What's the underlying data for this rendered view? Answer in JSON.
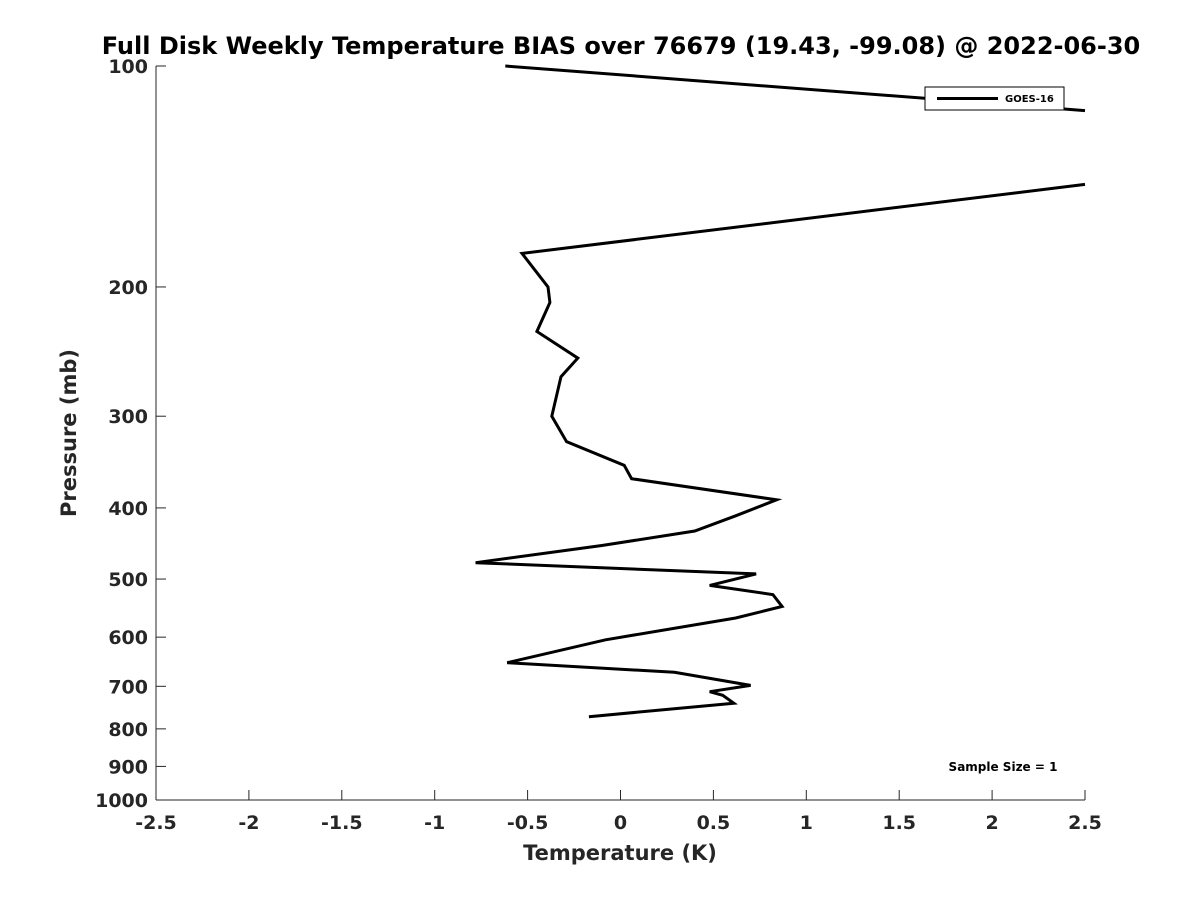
{
  "chart_data": {
    "type": "line",
    "title": "Full Disk Weekly Temperature BIAS over 76679 (19.43, -99.08) @ 2022-06-30",
    "xlabel": "Temperature (K)",
    "ylabel": "Pressure (mb)",
    "xlim": [
      -2.5,
      2.5
    ],
    "ylim": [
      100,
      1000
    ],
    "y_scale": "log",
    "y_reversed": true,
    "xticks": [
      "-2.5",
      "-2",
      "-1.5",
      "-1",
      "-0.5",
      "0",
      "0.5",
      "1",
      "1.5",
      "2",
      "2.5"
    ],
    "xtick_values": [
      -2.5,
      -2,
      -1.5,
      -1,
      -0.5,
      0,
      0.5,
      1,
      1.5,
      2,
      2.5
    ],
    "yticks": [
      "100",
      "200",
      "300",
      "400",
      "500",
      "600",
      "700",
      "800",
      "900",
      "1000"
    ],
    "ytick_values": [
      100,
      200,
      300,
      400,
      500,
      600,
      700,
      800,
      900,
      1000
    ],
    "legend": {
      "position": "top-right",
      "entries": [
        "GOES-16"
      ]
    },
    "annotation": "Sample Size = 1",
    "series": [
      {
        "name": "GOES-16",
        "color": "#000000",
        "x": [
          -0.62,
          2.5,
          null,
          2.5,
          -0.53,
          -0.39,
          -0.38,
          -0.45,
          -0.23,
          -0.32,
          -0.37,
          -0.29,
          0.02,
          0.06,
          0.84,
          0.62,
          0.4,
          -0.1,
          -0.78,
          0.73,
          0.48,
          0.82,
          0.87,
          0.62,
          -0.08,
          -0.61,
          0.29,
          0.7,
          0.48,
          0.55,
          0.61,
          -0.17
        ],
        "y": [
          100,
          115,
          null,
          145,
          180,
          200,
          210,
          230,
          250,
          265,
          300,
          325,
          350,
          365,
          390,
          410,
          430,
          450,
          475,
          492,
          510,
          525,
          545,
          565,
          605,
          650,
          670,
          698,
          712,
          720,
          738,
          770
        ]
      }
    ]
  }
}
